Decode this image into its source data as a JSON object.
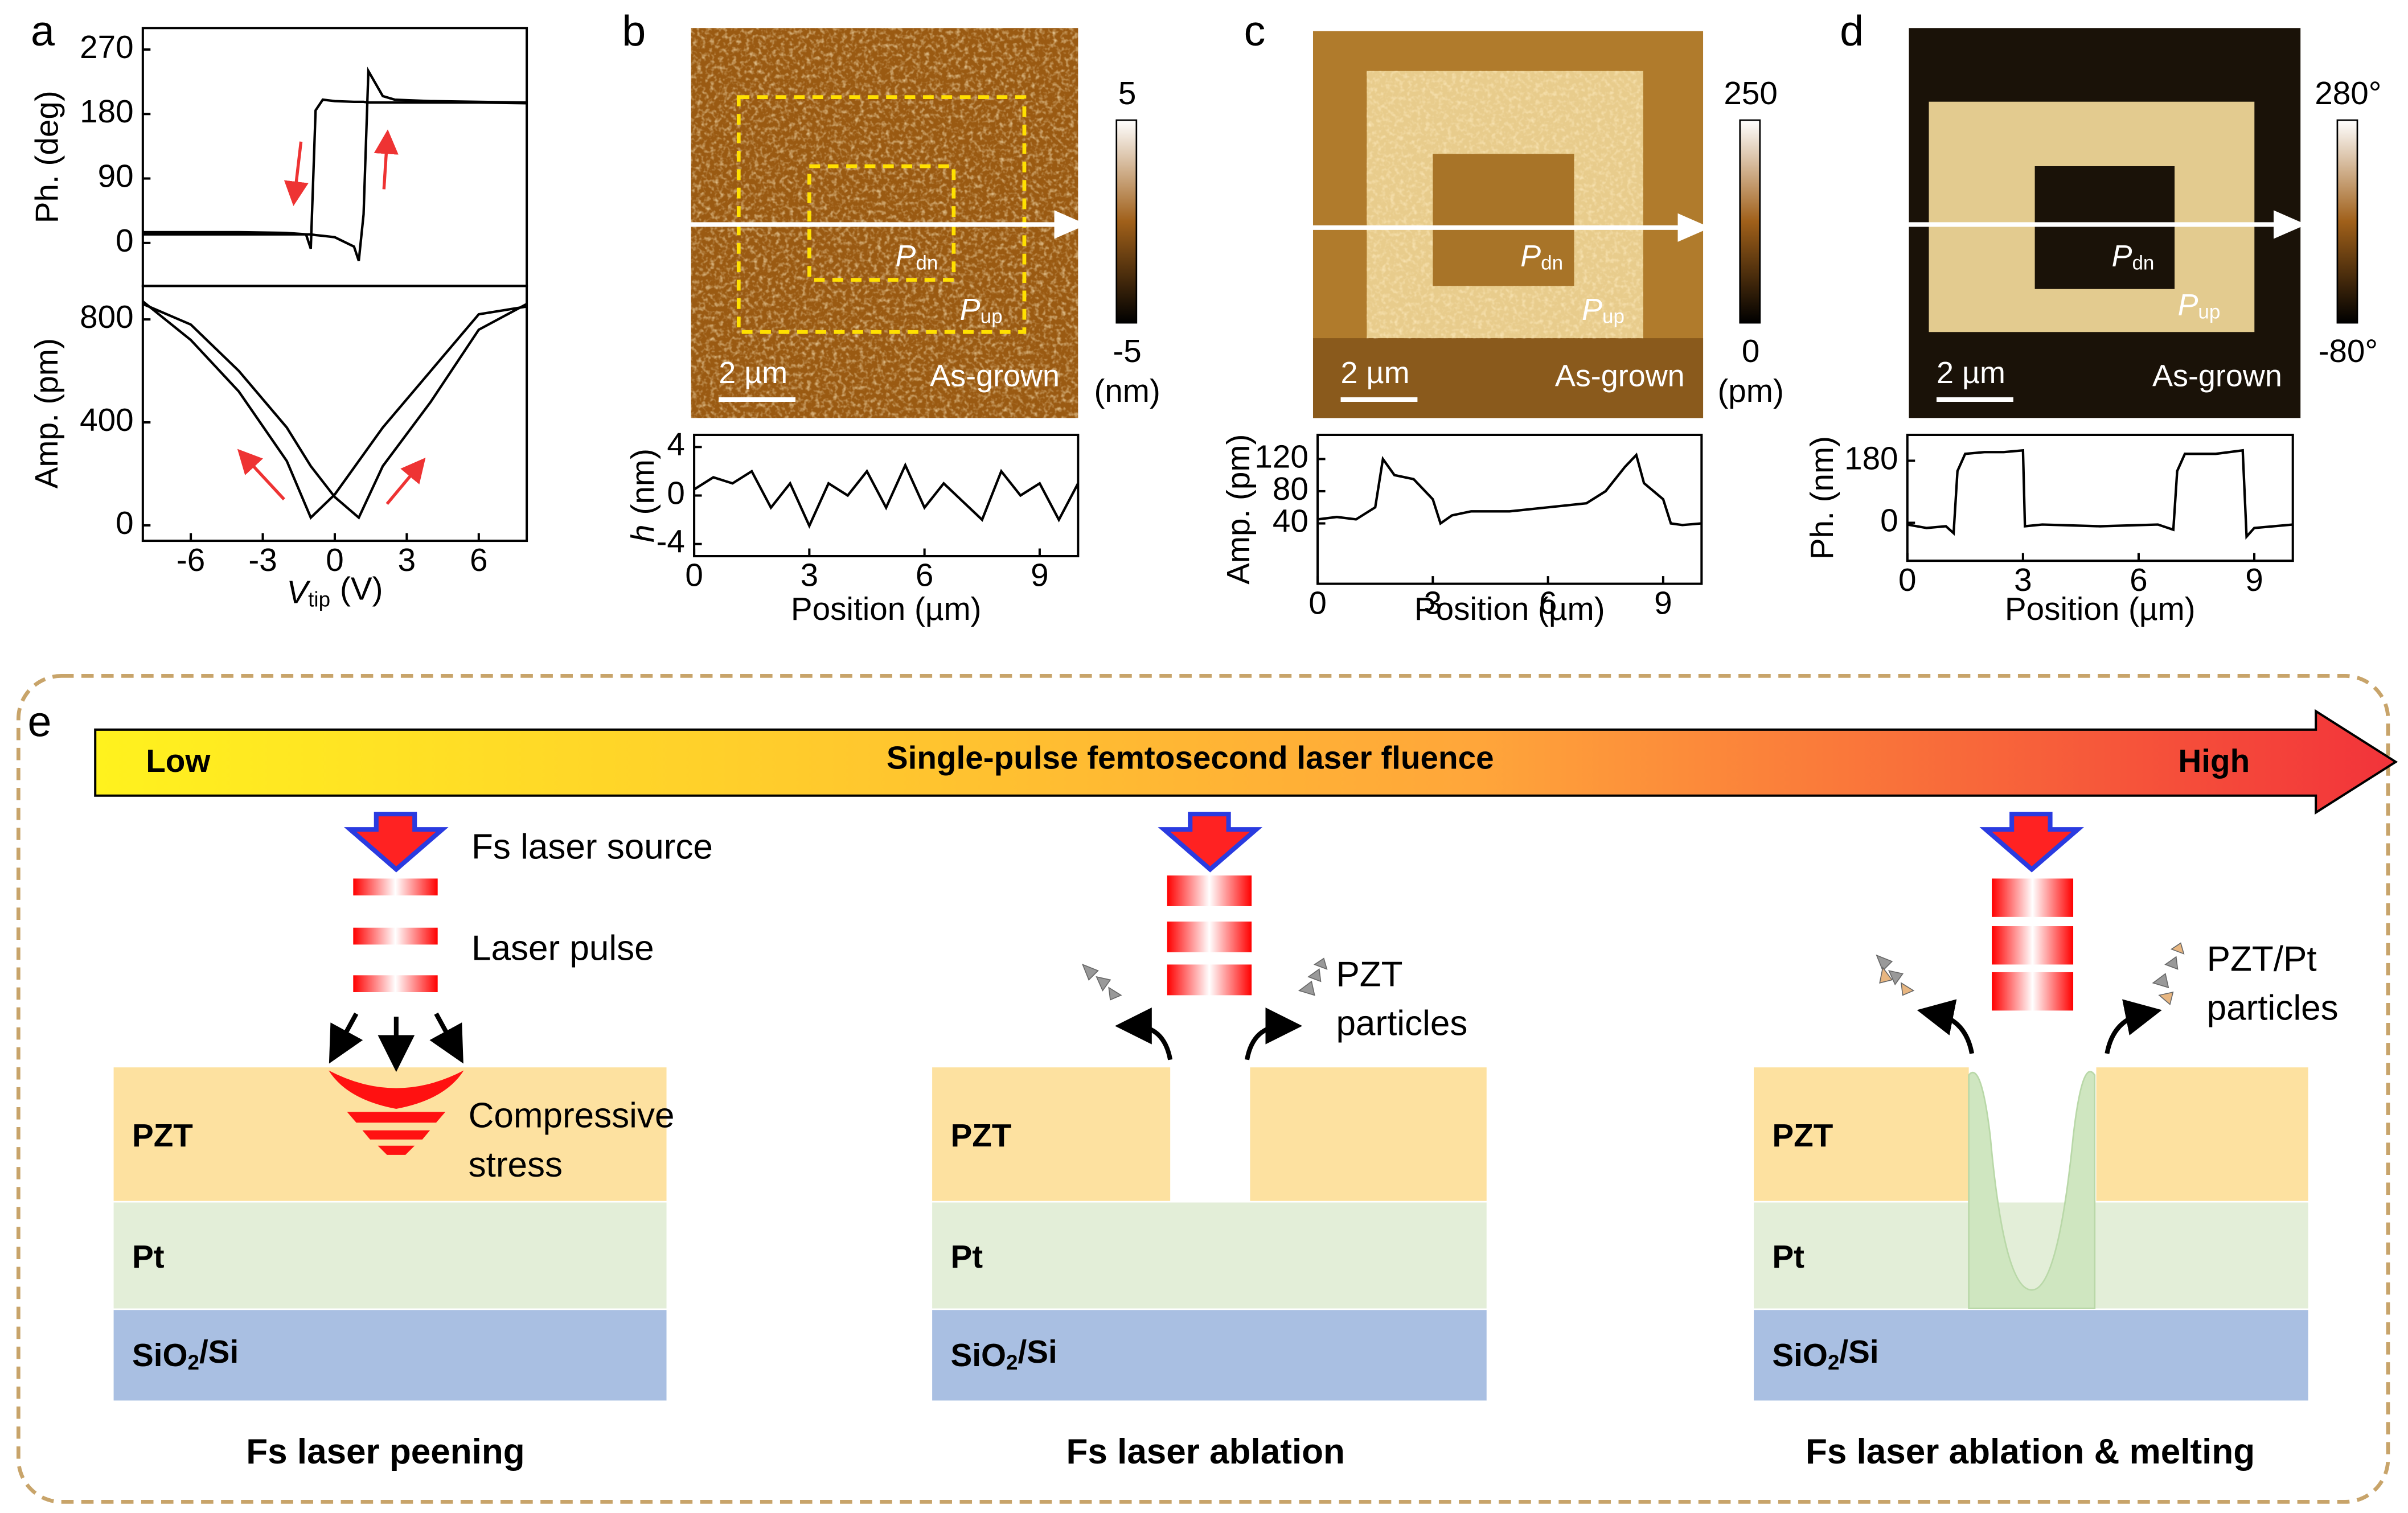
{
  "panel_labels": [
    "a",
    "b",
    "c",
    "d",
    "e"
  ],
  "chart_data": [
    {
      "type": "line",
      "ylabel": "Ph. (deg)",
      "xlim": [
        -8,
        8
      ],
      "ylim": [
        -60,
        300
      ],
      "yticks": [
        0,
        90,
        180,
        270
      ],
      "x": [
        -8,
        -6,
        -4,
        -2,
        -1.2,
        -1,
        -0.8,
        -0.5,
        0,
        0.8,
        1,
        1.2,
        1.4,
        2,
        2.5,
        4,
        6,
        8
      ],
      "series": [
        {
          "name": null,
          "color": "#000",
          "values": [
            15,
            15,
            15,
            14,
            12,
            -8,
            185,
            200,
            198,
            197,
            197,
            197,
            196,
            196,
            196,
            196,
            196,
            195
          ]
        },
        {
          "name": null,
          "color": "#000",
          "values": [
            12,
            12,
            12,
            12,
            12,
            12,
            11,
            10,
            8,
            -5,
            -25,
            40,
            240,
            205,
            200,
            198,
            197,
            196
          ]
        }
      ]
    },
    {
      "type": "line",
      "ylabel": "Amp. (pm)",
      "xlabel": {
        "symbol": "V",
        "sub": "tip",
        "unit": "(V)"
      },
      "xlim": [
        -8,
        8
      ],
      "ylim": [
        -60,
        930
      ],
      "xticks": [
        -6,
        -3,
        0,
        3,
        6
      ],
      "yticks": [
        0,
        400,
        800
      ],
      "x": [
        -8,
        -6,
        -4,
        -2,
        -1,
        0,
        1,
        2,
        4,
        6,
        8
      ],
      "series": [
        {
          "name": null,
          "color": "#000",
          "values": [
            870,
            720,
            520,
            250,
            30,
            120,
            250,
            380,
            600,
            820,
            850
          ]
        },
        {
          "name": null,
          "color": "#000",
          "values": [
            860,
            780,
            600,
            380,
            230,
            110,
            30,
            230,
            480,
            760,
            860
          ]
        }
      ]
    },
    {
      "type": "line",
      "ylabel": {
        "symbol": "h",
        "unit": "(nm)"
      },
      "xlabel": "Position (µm)",
      "xlim": [
        0,
        10
      ],
      "ylim": [
        -5,
        5
      ],
      "xticks": [
        0,
        3,
        6,
        9
      ],
      "yticks": [
        -4,
        0,
        4
      ],
      "x": [
        0,
        0.5,
        1,
        1.5,
        2,
        2.5,
        3,
        3.5,
        4,
        4.5,
        5,
        5.5,
        6,
        6.5,
        7,
        7.5,
        8,
        8.5,
        9,
        9.5,
        10
      ],
      "series": [
        {
          "name": null,
          "color": "#000",
          "values": [
            0.5,
            1.5,
            1,
            2,
            -1,
            1,
            -2.5,
            1,
            0,
            2,
            -1,
            2.5,
            -1,
            1,
            -0.5,
            -2,
            2,
            0,
            1,
            -2,
            1
          ]
        }
      ]
    },
    {
      "type": "line",
      "ylabel": "Amp. (pm)",
      "xlabel": "Position (µm)",
      "xlim": [
        0,
        10
      ],
      "ylim": [
        -35,
        150
      ],
      "xticks": [
        0,
        3,
        6,
        9
      ],
      "yticks": [
        40,
        80,
        120
      ],
      "x": [
        0,
        0.5,
        1,
        1.5,
        1.7,
        2,
        2.5,
        3,
        3.2,
        3.5,
        4,
        5,
        6,
        7,
        7.5,
        8,
        8.3,
        8.5,
        9,
        9.2,
        9.5,
        10
      ],
      "series": [
        {
          "name": null,
          "color": "#000",
          "values": [
            45,
            48,
            45,
            60,
            120,
            100,
            95,
            70,
            40,
            50,
            55,
            55,
            60,
            65,
            80,
            110,
            125,
            90,
            70,
            40,
            38,
            40
          ]
        }
      ]
    },
    {
      "type": "line",
      "ylabel": "Ph. (nm)",
      "xlabel": "Position (µm)",
      "xlim": [
        0,
        10
      ],
      "ylim": [
        -110,
        255
      ],
      "xticks": [
        0,
        3,
        6,
        9
      ],
      "yticks": [
        0,
        180
      ],
      "x": [
        0,
        0.5,
        1,
        1.2,
        1.3,
        1.5,
        2,
        2.5,
        3,
        3.05,
        3.5,
        5,
        6.5,
        6.9,
        7,
        7.2,
        8,
        8.7,
        8.8,
        9,
        10
      ],
      "series": [
        {
          "name": null,
          "color": "#000",
          "values": [
            -5,
            -15,
            -10,
            -30,
            150,
            200,
            205,
            205,
            210,
            -10,
            -5,
            -10,
            -5,
            -20,
            150,
            200,
            200,
            210,
            -40,
            -15,
            -5
          ]
        }
      ]
    }
  ],
  "images": [
    {
      "scale_bar": "2 µm",
      "label": "As-grown",
      "colorbar": {
        "lim": [
          -5,
          5
        ],
        "ticks": [
          5,
          -5
        ],
        "unit": "(nm)"
      },
      "domains": [
        {
          "symbol": "P",
          "sub": "dn"
        },
        {
          "symbol": "P",
          "sub": "up"
        }
      ]
    },
    {
      "scale_bar": "2 µm",
      "label": "As-grown",
      "colorbar": {
        "lim": [
          0,
          250
        ],
        "ticks": [
          250,
          0
        ],
        "unit": "(pm)"
      },
      "domains": [
        {
          "symbol": "P",
          "sub": "dn"
        },
        {
          "symbol": "P",
          "sub": "up"
        }
      ]
    },
    {
      "scale_bar": "2 µm",
      "label": "As-grown",
      "colorbar": {
        "lim": [
          -80,
          280
        ],
        "ticks": [
          {
            "value": 280,
            "label": "280°"
          },
          {
            "value": -80,
            "label": "-80°"
          }
        ]
      },
      "domains": [
        {
          "symbol": "P",
          "sub": "dn"
        },
        {
          "symbol": "P",
          "sub": "up"
        }
      ]
    }
  ],
  "diagram": {
    "fluence": {
      "low": "Low",
      "title": "Single-pulse femtosecond laser fluence",
      "high": "High"
    },
    "layers": [
      "PZT",
      "Pt",
      {
        "main": "SiO",
        "sub": "2",
        "rest": "/Si"
      }
    ],
    "stages": [
      {
        "caption": "Fs laser peening",
        "labels": [
          [
            "Fs laser source"
          ],
          [
            "Laser pulse"
          ],
          [
            "Compressive",
            "stress"
          ]
        ]
      },
      {
        "caption": "Fs laser ablation",
        "labels": [
          [
            "PZT",
            "particles"
          ]
        ]
      },
      {
        "caption": "Fs laser ablation & melting",
        "labels": [
          [
            "PZT/Pt",
            "particles"
          ]
        ]
      }
    ]
  }
}
